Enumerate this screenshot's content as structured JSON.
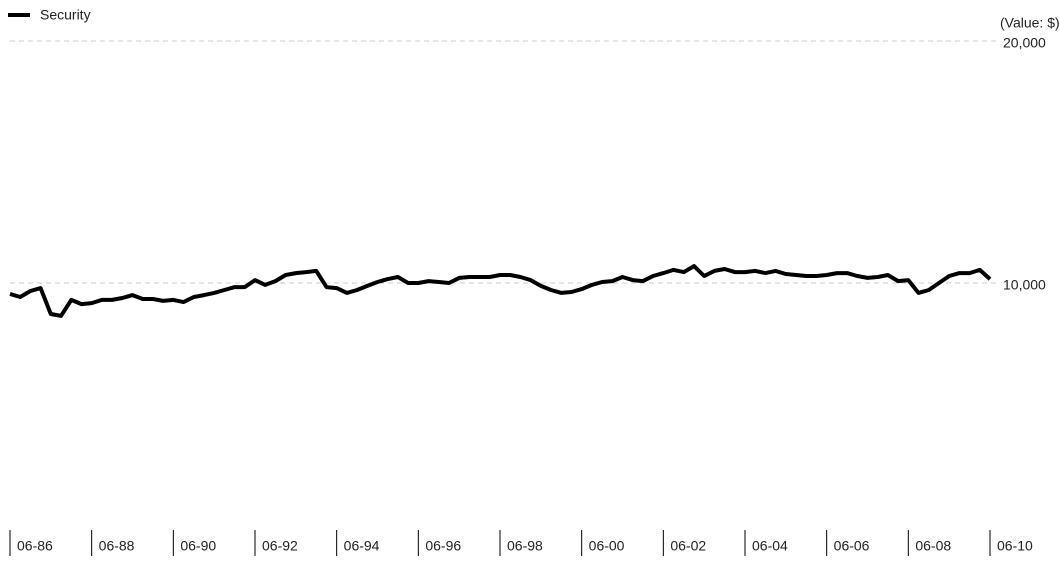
{
  "chart_data": {
    "type": "line",
    "y_label": "(Value: $)",
    "x": [
      "06-86",
      "09-86",
      "12-86",
      "03-87",
      "06-87",
      "09-87",
      "12-87",
      "03-88",
      "06-88",
      "09-88",
      "12-88",
      "03-89",
      "06-89",
      "09-89",
      "12-89",
      "03-90",
      "06-90",
      "09-90",
      "12-90",
      "03-91",
      "06-91",
      "09-91",
      "12-91",
      "03-92",
      "06-92",
      "09-92",
      "12-92",
      "03-93",
      "06-93",
      "09-93",
      "12-93",
      "03-94",
      "06-94",
      "09-94",
      "12-94",
      "03-95",
      "06-95",
      "09-95",
      "12-95",
      "03-96",
      "06-96",
      "09-96",
      "12-96",
      "03-97",
      "06-97",
      "09-97",
      "12-97",
      "03-98",
      "06-98",
      "09-98",
      "12-98",
      "03-99",
      "06-99",
      "09-99",
      "12-99",
      "03-00",
      "06-00",
      "09-00",
      "12-00",
      "03-01",
      "06-01",
      "09-01",
      "12-01",
      "03-02",
      "06-02",
      "09-02",
      "12-02",
      "03-03",
      "06-03",
      "09-03",
      "12-03",
      "03-04",
      "06-04",
      "09-04",
      "12-04",
      "03-05",
      "06-05",
      "09-05",
      "12-05",
      "03-06",
      "06-06",
      "09-06",
      "12-06",
      "03-07",
      "06-07",
      "09-07",
      "12-07",
      "03-08",
      "06-08",
      "09-08",
      "12-08",
      "03-09",
      "06-09",
      "09-09",
      "12-09",
      "03-10",
      "06-10"
    ],
    "series": [
      {
        "name": "Security",
        "color": "#000000",
        "values": [
          9550,
          9420,
          9670,
          9790,
          8720,
          8640,
          9300,
          9130,
          9170,
          9300,
          9300,
          9380,
          9500,
          9340,
          9340,
          9260,
          9300,
          9210,
          9420,
          9500,
          9590,
          9710,
          9830,
          9830,
          10120,
          9920,
          10080,
          10330,
          10410,
          10450,
          10500,
          9830,
          9790,
          9590,
          9710,
          9880,
          10040,
          10160,
          10250,
          10000,
          10000,
          10080,
          10040,
          10000,
          10210,
          10250,
          10250,
          10250,
          10330,
          10330,
          10250,
          10120,
          9880,
          9710,
          9590,
          9630,
          9750,
          9920,
          10040,
          10080,
          10250,
          10120,
          10080,
          10290,
          10410,
          10540,
          10450,
          10700,
          10290,
          10500,
          10580,
          10450,
          10450,
          10500,
          10410,
          10500,
          10370,
          10330,
          10290,
          10290,
          10330,
          10410,
          10410,
          10290,
          10210,
          10250,
          10330,
          10080,
          10120,
          9590,
          9710,
          10000,
          10290,
          10410,
          10410,
          10540,
          10160
        ]
      }
    ],
    "xlim": [
      "06-86",
      "06-10"
    ],
    "xticks": [
      "06-86",
      "06-88",
      "06-90",
      "06-92",
      "06-94",
      "06-96",
      "06-98",
      "06-00",
      "06-02",
      "06-04",
      "06-06",
      "06-08",
      "06-10"
    ],
    "ylim": [
      0,
      20000
    ],
    "yticks": [
      {
        "value": 10000,
        "label": "10,000"
      },
      {
        "value": 20000,
        "label": "20,000"
      }
    ],
    "grid": true,
    "legend": "top-left"
  }
}
